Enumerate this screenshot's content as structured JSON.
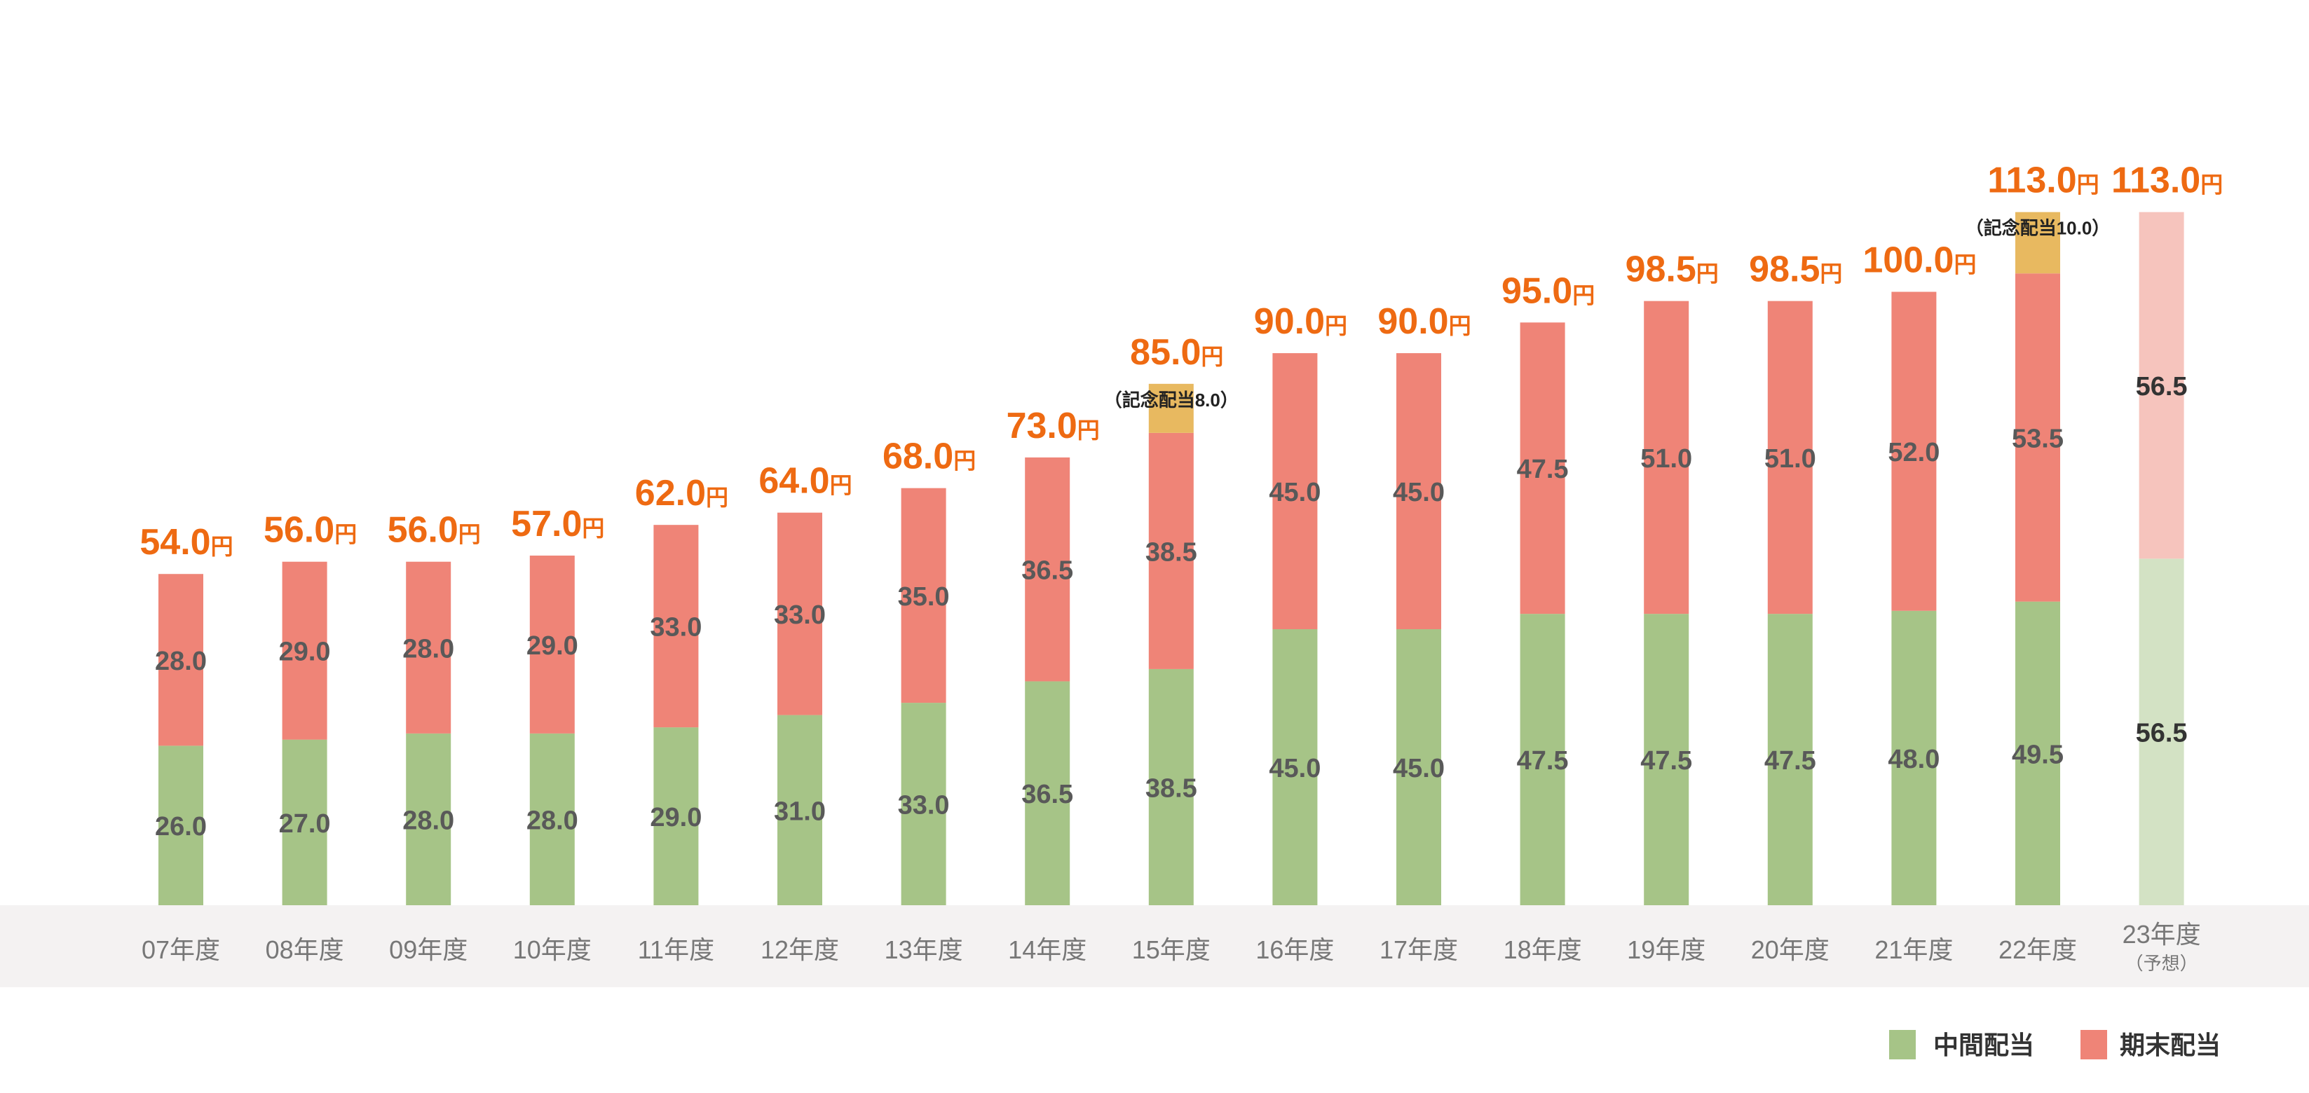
{
  "chart_data": {
    "type": "bar",
    "stacked": true,
    "categories": [
      "07年度",
      "08年度",
      "09年度",
      "10年度",
      "11年度",
      "12年度",
      "13年度",
      "14年度",
      "15年度",
      "16年度",
      "17年度",
      "18年度",
      "19年度",
      "20年度",
      "21年度",
      "22年度",
      "23年度"
    ],
    "category_notes": [
      "",
      "",
      "",
      "",
      "",
      "",
      "",
      "",
      "",
      "",
      "",
      "",
      "",
      "",
      "",
      "",
      "（予想）"
    ],
    "series": [
      {
        "name": "中間配当",
        "color": "#a6c487",
        "forecast_color": "#d3e2c4",
        "values": [
          26.0,
          27.0,
          28.0,
          28.0,
          29.0,
          31.0,
          33.0,
          36.5,
          38.5,
          45.0,
          45.0,
          47.5,
          47.5,
          47.5,
          48.0,
          49.5,
          56.5
        ]
      },
      {
        "name": "期末配当",
        "color": "#ef8477",
        "forecast_color": "#f6c4bd",
        "values": [
          28.0,
          29.0,
          28.0,
          29.0,
          33.0,
          33.0,
          35.0,
          36.5,
          38.5,
          45.0,
          45.0,
          47.5,
          51.0,
          51.0,
          52.0,
          53.5,
          56.5
        ]
      },
      {
        "name": "記念配当",
        "color": "#e8b960",
        "show_in_legend": false,
        "values": [
          0,
          0,
          0,
          0,
          0,
          0,
          0,
          0,
          8.0,
          0,
          0,
          0,
          0,
          0,
          0,
          10.0,
          0
        ]
      }
    ],
    "value_labels": [
      [
        "26.0",
        "27.0",
        "28.0",
        "28.0",
        "29.0",
        "31.0",
        "33.0",
        "36.5",
        "38.5",
        "45.0",
        "45.0",
        "47.5",
        "47.5",
        "47.5",
        "48.0",
        "49.5",
        "56.5"
      ],
      [
        "28.0",
        "29.0",
        "28.0",
        "29.0",
        "33.0",
        "33.0",
        "35.0",
        "36.5",
        "38.5",
        "45.0",
        "45.0",
        "47.5",
        "51.0",
        "51.0",
        "52.0",
        "53.5",
        "56.5"
      ]
    ],
    "totals": [
      "54.0",
      "56.0",
      "56.0",
      "57.0",
      "62.0",
      "64.0",
      "68.0",
      "73.0",
      "85.0",
      "90.0",
      "90.0",
      "95.0",
      "98.5",
      "98.5",
      "100.0",
      "113.0",
      "113.0"
    ],
    "total_unit": "円",
    "annotations": [
      {
        "category_index": 8,
        "text": "（記念配当8.0）"
      },
      {
        "category_index": 15,
        "text": "（記念配当10.0）"
      }
    ],
    "forecast_index": 16,
    "ylim": [
      0,
      113
    ],
    "grid": false,
    "legend_position": "bottom-right",
    "title": "",
    "xlabel": "",
    "ylabel": ""
  },
  "legend": {
    "items": [
      {
        "label": "中間配当",
        "color": "#a6c487"
      },
      {
        "label": "期末配当",
        "color": "#ef8477"
      }
    ]
  }
}
